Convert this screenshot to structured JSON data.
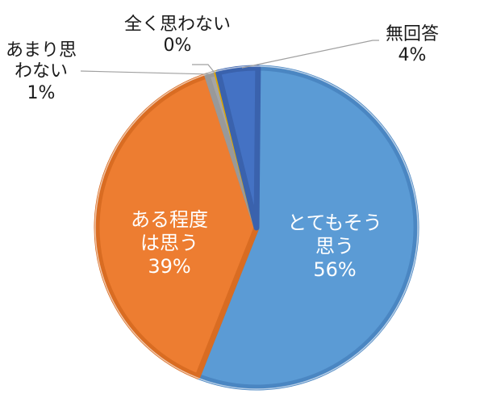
{
  "chart_data": {
    "type": "pie",
    "title": "",
    "start_angle_deg": 0,
    "direction": "clockwise",
    "slices": [
      {
        "label": "とてもそう思う",
        "value": 56,
        "display": "56%",
        "color": "#5b9bd5",
        "edge": "#4a86c2",
        "label_position": "inside"
      },
      {
        "label": "ある程度は思う",
        "value": 39,
        "display": "39%",
        "color": "#ed7d31",
        "edge": "#d96c22",
        "label_position": "inside"
      },
      {
        "label": "あまり思わない",
        "value": 1,
        "display": "1%",
        "color": "#a5a5a5",
        "edge": "#999999",
        "label_position": "outside"
      },
      {
        "label": "全く思わない",
        "value": 0,
        "display": "0%",
        "color": "#ffc000",
        "edge": "#e0a800",
        "label_position": "outside"
      },
      {
        "label": "無回答",
        "value": 4,
        "display": "4%",
        "color": "#4472c4",
        "edge": "#3a62ad",
        "label_position": "outside"
      }
    ],
    "legend": "none"
  },
  "labels": {
    "very_much": {
      "line1": "とてもそう",
      "line2": "思う",
      "pct": "56%"
    },
    "somewhat": {
      "line1": "ある程度",
      "line2": "は思う",
      "pct": "39%"
    },
    "not_much": {
      "line1": "あまり思",
      "line2": "わない",
      "pct": "1%"
    },
    "not_at_all": {
      "line1": "全く思わない",
      "pct": "0%"
    },
    "no_answer": {
      "line1": "無回答",
      "pct": "4%"
    }
  }
}
